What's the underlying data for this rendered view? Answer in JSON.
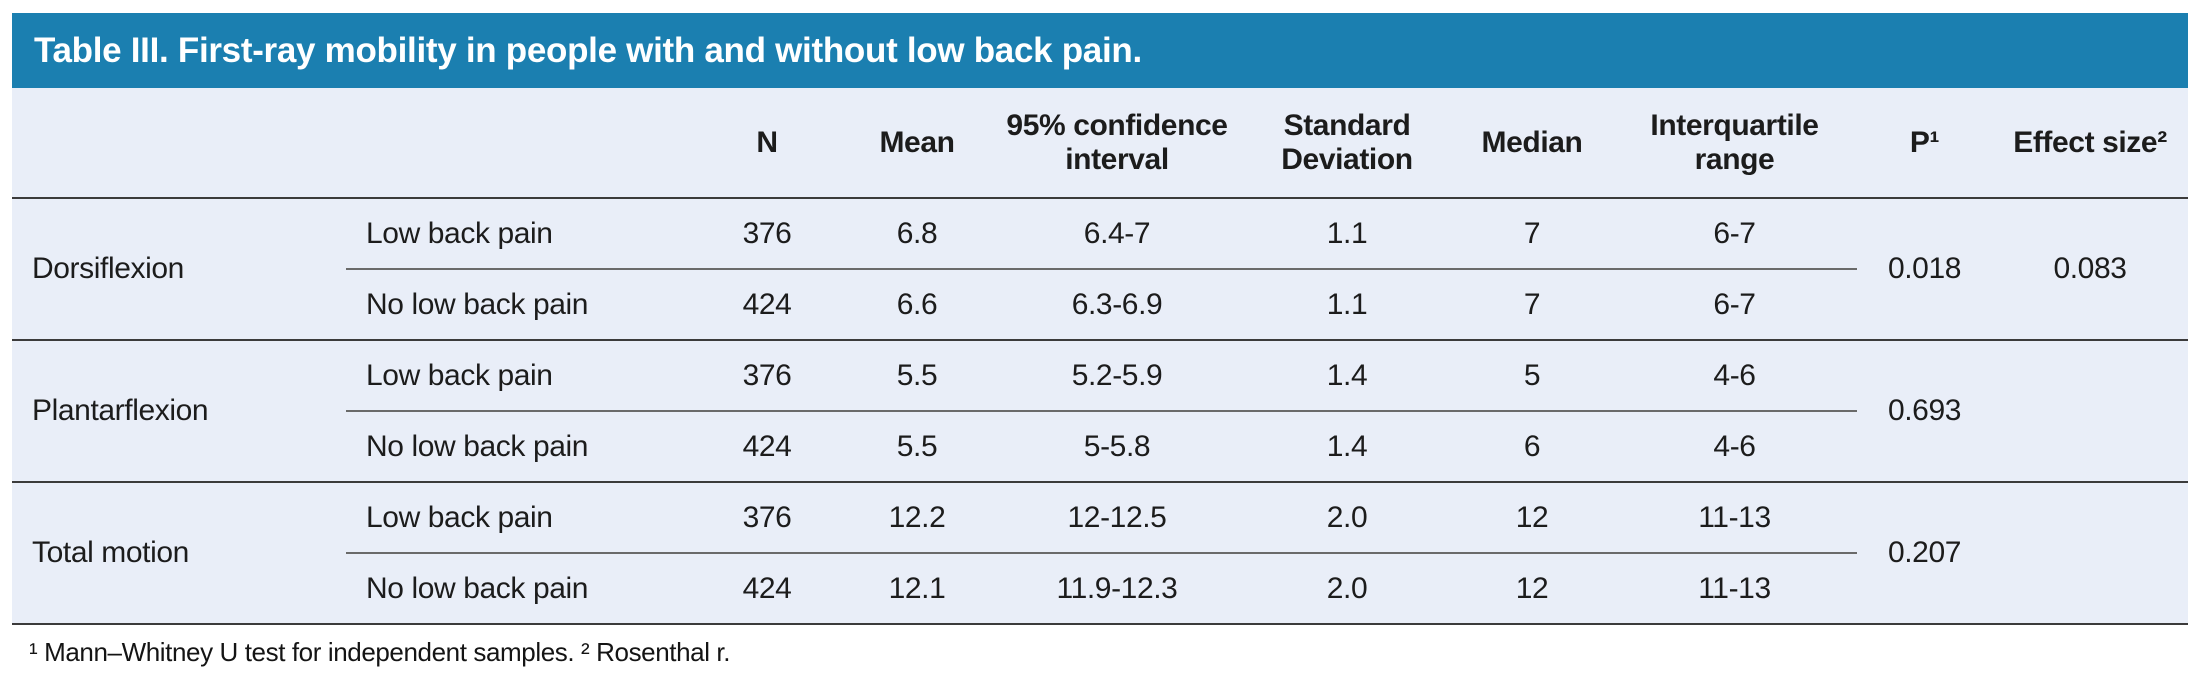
{
  "title": "Table III. First-ray mobility in people with and without low back pain.",
  "colors": {
    "header_bg": "#1b7fb0",
    "table_bg": "#e9eef8",
    "title_text": "#ffffff",
    "rule_dark": "#3b3b3b",
    "rule_light": "#6a6a6a"
  },
  "columns": {
    "n": "N",
    "mean": "Mean",
    "ci": "95% confidence interval",
    "sd": "Standard Deviation",
    "median": "Median",
    "iqr": "Interquartile range",
    "p": "P¹",
    "effect": "Effect size²"
  },
  "groups": [
    {
      "label": "Dorsiflexion",
      "p": "0.018",
      "effect": "0.083",
      "rows": [
        {
          "cohort": "Low back pain",
          "n": "376",
          "mean": "6.8",
          "ci": "6.4-7",
          "sd": "1.1",
          "median": "7",
          "iqr": "6-7"
        },
        {
          "cohort": "No low back pain",
          "n": "424",
          "mean": "6.6",
          "ci": "6.3-6.9",
          "sd": "1.1",
          "median": "7",
          "iqr": "6-7"
        }
      ]
    },
    {
      "label": "Plantarflexion",
      "p": "0.693",
      "effect": "",
      "rows": [
        {
          "cohort": "Low back pain",
          "n": "376",
          "mean": "5.5",
          "ci": "5.2-5.9",
          "sd": "1.4",
          "median": "5",
          "iqr": "4-6"
        },
        {
          "cohort": "No low back pain",
          "n": "424",
          "mean": "5.5",
          "ci": "5-5.8",
          "sd": "1.4",
          "median": "6",
          "iqr": "4-6"
        }
      ]
    },
    {
      "label": "Total motion",
      "p": "0.207",
      "effect": "",
      "rows": [
        {
          "cohort": "Low back pain",
          "n": "376",
          "mean": "12.2",
          "ci": "12-12.5",
          "sd": "2.0",
          "median": "12",
          "iqr": "11-13"
        },
        {
          "cohort": "No low back pain",
          "n": "424",
          "mean": "12.1",
          "ci": "11.9-12.3",
          "sd": "2.0",
          "median": "12",
          "iqr": "11-13"
        }
      ]
    }
  ],
  "footnote": "¹ Mann–Whitney U test for independent samples. ² Rosenthal r."
}
